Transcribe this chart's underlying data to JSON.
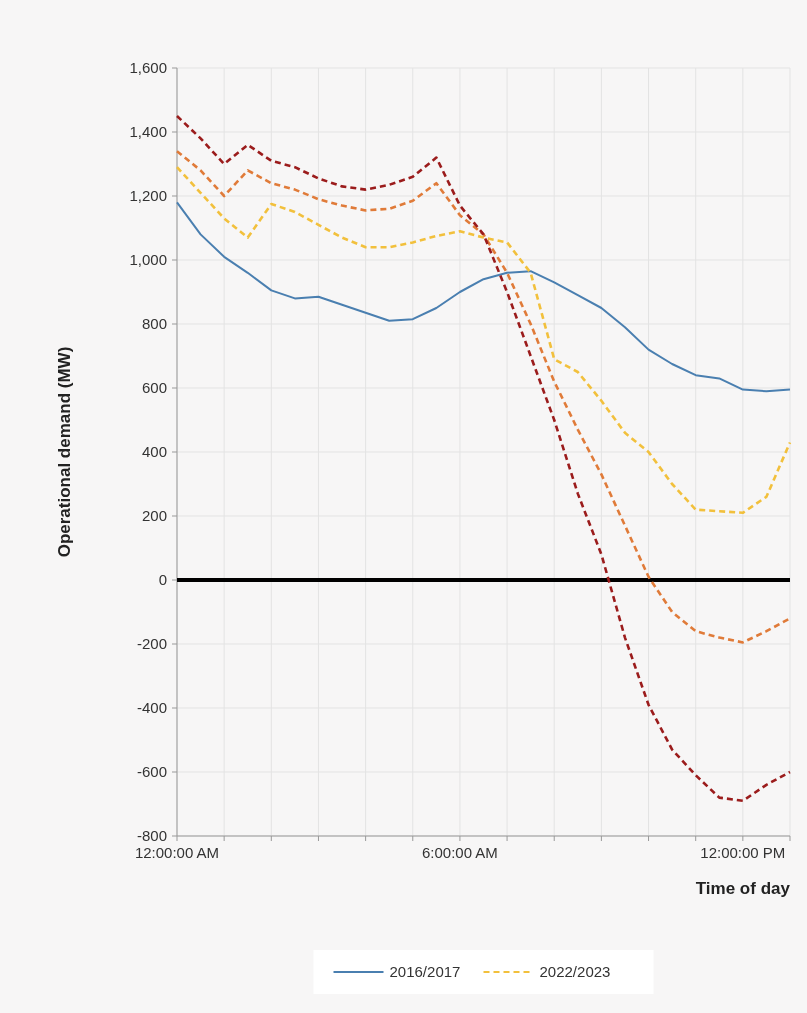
{
  "chart_data": {
    "type": "line",
    "xlabel": "Time of day",
    "ylabel": "Operational demand (MW)",
    "x": [
      0,
      0.5,
      1,
      1.5,
      2,
      2.5,
      3,
      3.5,
      4,
      4.5,
      5,
      5.5,
      6,
      6.5,
      7,
      7.5,
      8,
      8.5,
      9,
      9.5,
      10,
      10.5,
      11,
      11.5,
      12,
      12.5,
      13
    ],
    "series": [
      {
        "name": "2016/2017",
        "color": "#4a7fb0",
        "line_style": "solid",
        "values": [
          1180,
          1080,
          1010,
          960,
          905,
          880,
          885,
          860,
          835,
          810,
          815,
          850,
          900,
          940,
          960,
          965,
          930,
          890,
          850,
          790,
          720,
          675,
          640,
          630,
          595,
          590,
          595
        ]
      },
      {
        "name": "2022/2023",
        "color": "#f2c03c",
        "line_style": "dashed",
        "values": [
          1290,
          1210,
          1130,
          1070,
          1175,
          1150,
          1110,
          1070,
          1040,
          1040,
          1055,
          1075,
          1090,
          1070,
          1055,
          960,
          690,
          650,
          560,
          460,
          400,
          300,
          220,
          215,
          210,
          260,
          430
        ]
      },
      {
        "color": "#e07b39",
        "line_style": "dashed",
        "values": [
          1340,
          1280,
          1200,
          1280,
          1240,
          1220,
          1190,
          1170,
          1155,
          1160,
          1185,
          1240,
          1140,
          1080,
          960,
          800,
          620,
          470,
          330,
          170,
          10,
          -100,
          -160,
          -180,
          -195,
          -160,
          -120
        ]
      },
      {
        "color": "#9b1c1c",
        "line_style": "dashed",
        "values": [
          1450,
          1380,
          1300,
          1360,
          1310,
          1290,
          1255,
          1230,
          1220,
          1235,
          1260,
          1320,
          1170,
          1080,
          900,
          700,
          500,
          270,
          80,
          -180,
          -390,
          -530,
          -610,
          -680,
          -690,
          -640,
          -600
        ]
      }
    ],
    "xlim": [
      0,
      13
    ],
    "xticks": [
      {
        "value": 0,
        "label": "12:00:00 AM"
      },
      {
        "value": 1,
        "label": null
      },
      {
        "value": 2,
        "label": null
      },
      {
        "value": 3,
        "label": null
      },
      {
        "value": 4,
        "label": null
      },
      {
        "value": 5,
        "label": null
      },
      {
        "value": 6,
        "label": "6:00:00 AM"
      },
      {
        "value": 7,
        "label": null
      },
      {
        "value": 8,
        "label": null
      },
      {
        "value": 9,
        "label": null
      },
      {
        "value": 10,
        "label": null
      },
      {
        "value": 11,
        "label": null
      },
      {
        "value": 12,
        "label": "12:00:00 PM"
      },
      {
        "value": 13,
        "label": null
      }
    ],
    "ylim": [
      -800,
      1600
    ],
    "yticks": [
      {
        "value": -800,
        "label": "-800"
      },
      {
        "value": -600,
        "label": "-600"
      },
      {
        "value": -400,
        "label": "-400"
      },
      {
        "value": -200,
        "label": "-200"
      },
      {
        "value": 0,
        "label": "0"
      },
      {
        "value": 200,
        "label": "200"
      },
      {
        "value": 400,
        "label": "400"
      },
      {
        "value": 600,
        "label": "600"
      },
      {
        "value": 800,
        "label": "800"
      },
      {
        "value": 1000,
        "label": "1,000"
      },
      {
        "value": 1200,
        "label": "1,200"
      },
      {
        "value": 1400,
        "label": "1,400"
      },
      {
        "value": 1600,
        "label": "1,600"
      }
    ],
    "ref_lines": [
      {
        "axis": "y",
        "value": 0,
        "color": "#000000"
      }
    ],
    "grid": true,
    "legend": "bottom",
    "marker": "none"
  }
}
